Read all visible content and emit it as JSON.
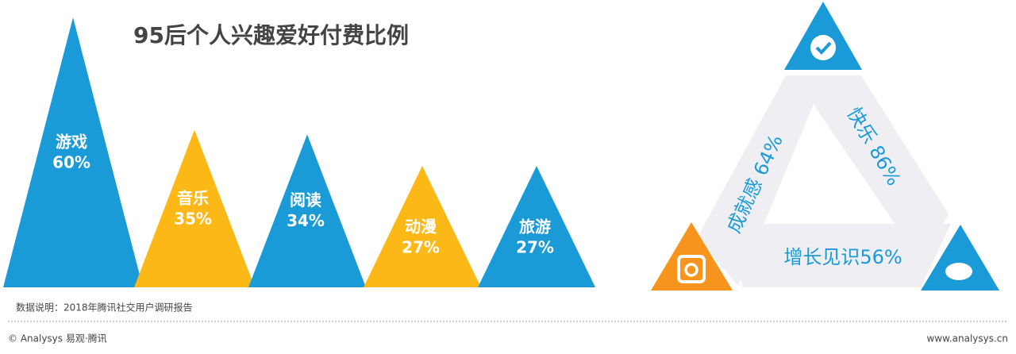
{
  "chart_data": {
    "type": "triangle",
    "title": "95后个人兴趣爱好付费比例",
    "categories": [
      "游戏",
      "音乐",
      "阅读",
      "动漫",
      "旅游"
    ],
    "values": [
      60,
      35,
      34,
      27,
      27
    ],
    "value_labels": [
      "60%",
      "35%",
      "34%",
      "27%",
      "27%"
    ],
    "colors": [
      "#1a9ad6",
      "#fbb816",
      "#1a9ad6",
      "#fbb816",
      "#1a9ad6"
    ],
    "ylim": [
      0,
      60
    ]
  },
  "side_panel": {
    "items": [
      "成就感 64%",
      "快乐 86%",
      "增长见识56%"
    ]
  },
  "note": "数据说明：2018年腾讯社交用户调研报告",
  "footer": {
    "left": "© Analysys 易观·腾讯",
    "right": "www.analysys.cn"
  }
}
